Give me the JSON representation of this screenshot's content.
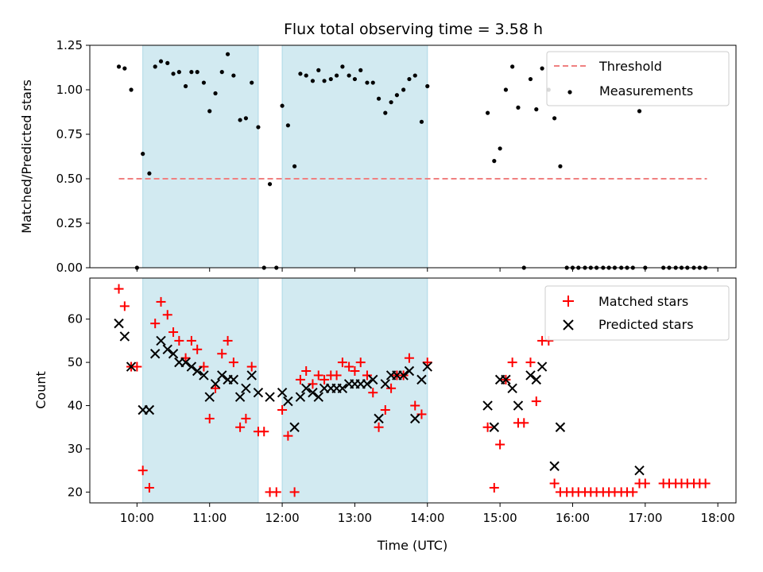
{
  "title": "Flux total observing time = 3.58 h",
  "colors": {
    "span": "#add8e6",
    "threshold": "#f08080",
    "measurement": "#000000",
    "matched": "#ff0000",
    "predicted": "#000000"
  },
  "chart_data": [
    {
      "type": "scatter",
      "ylabel": "Matched/Predicted stars",
      "xlim": [
        9.35,
        18.25
      ],
      "ylim": [
        0,
        1.25
      ],
      "y_ticks": [
        "0.00",
        "0.25",
        "0.50",
        "0.75",
        "1.00",
        "1.25"
      ],
      "y_tick_values": [
        0,
        0.25,
        0.5,
        0.75,
        1.0,
        1.25
      ],
      "legend": {
        "position": "top-right",
        "entries": [
          "Threshold",
          "Measurements"
        ]
      },
      "observing_spans": [
        [
          10.08,
          11.67
        ],
        [
          12.0,
          14.0
        ]
      ],
      "threshold": {
        "name": "Threshold",
        "value": 0.5,
        "x": [
          9.75,
          17.85
        ]
      },
      "series": [
        {
          "name": "Measurements",
          "points": [
            [
              9.75,
              1.13
            ],
            [
              9.83,
              1.12
            ],
            [
              9.92,
              1.0
            ],
            [
              10.0,
              0.0
            ],
            [
              10.08,
              0.64
            ],
            [
              10.17,
              0.53
            ],
            [
              10.25,
              1.13
            ],
            [
              10.33,
              1.16
            ],
            [
              10.42,
              1.15
            ],
            [
              10.5,
              1.09
            ],
            [
              10.58,
              1.1
            ],
            [
              10.67,
              1.02
            ],
            [
              10.75,
              1.1
            ],
            [
              10.83,
              1.1
            ],
            [
              10.92,
              1.04
            ],
            [
              11.0,
              0.88
            ],
            [
              11.08,
              0.98
            ],
            [
              11.17,
              1.1
            ],
            [
              11.25,
              1.2
            ],
            [
              11.33,
              1.08
            ],
            [
              11.42,
              0.83
            ],
            [
              11.5,
              0.84
            ],
            [
              11.58,
              1.04
            ],
            [
              11.67,
              0.79
            ],
            [
              11.75,
              0.0
            ],
            [
              11.83,
              0.47
            ],
            [
              11.92,
              0.0
            ],
            [
              12.0,
              0.91
            ],
            [
              12.08,
              0.8
            ],
            [
              12.17,
              0.57
            ],
            [
              12.25,
              1.09
            ],
            [
              12.33,
              1.08
            ],
            [
              12.42,
              1.05
            ],
            [
              12.5,
              1.11
            ],
            [
              12.58,
              1.05
            ],
            [
              12.67,
              1.06
            ],
            [
              12.75,
              1.08
            ],
            [
              12.83,
              1.13
            ],
            [
              12.92,
              1.08
            ],
            [
              13.0,
              1.06
            ],
            [
              13.08,
              1.11
            ],
            [
              13.17,
              1.04
            ],
            [
              13.25,
              1.04
            ],
            [
              13.33,
              0.95
            ],
            [
              13.42,
              0.87
            ],
            [
              13.5,
              0.93
            ],
            [
              13.58,
              0.97
            ],
            [
              13.67,
              1.0
            ],
            [
              13.75,
              1.06
            ],
            [
              13.83,
              1.08
            ],
            [
              13.92,
              0.82
            ],
            [
              14.0,
              1.02
            ],
            [
              14.83,
              0.87
            ],
            [
              14.92,
              0.6
            ],
            [
              15.0,
              0.67
            ],
            [
              15.08,
              1.0
            ],
            [
              15.17,
              1.13
            ],
            [
              15.25,
              0.9
            ],
            [
              15.33,
              0.0
            ],
            [
              15.42,
              1.06
            ],
            [
              15.5,
              0.89
            ],
            [
              15.58,
              1.12
            ],
            [
              15.67,
              1.0
            ],
            [
              15.75,
              0.84
            ],
            [
              15.83,
              0.57
            ],
            [
              15.92,
              0.0
            ],
            [
              16.0,
              0.0
            ],
            [
              16.08,
              0.0
            ],
            [
              16.17,
              0.0
            ],
            [
              16.25,
              0.0
            ],
            [
              16.33,
              0.0
            ],
            [
              16.42,
              0.0
            ],
            [
              16.5,
              0.0
            ],
            [
              16.58,
              0.0
            ],
            [
              16.67,
              0.0
            ],
            [
              16.75,
              0.0
            ],
            [
              16.83,
              0.0
            ],
            [
              16.92,
              0.88
            ],
            [
              17.0,
              0.0
            ],
            [
              17.25,
              0.0
            ],
            [
              17.33,
              0.0
            ],
            [
              17.42,
              0.0
            ],
            [
              17.5,
              0.0
            ],
            [
              17.58,
              0.0
            ],
            [
              17.67,
              0.0
            ],
            [
              17.75,
              0.0
            ],
            [
              17.83,
              0.0
            ]
          ]
        }
      ]
    },
    {
      "type": "scatter",
      "xlabel": "Time (UTC)",
      "ylabel": "Count",
      "xlim": [
        9.35,
        18.25
      ],
      "ylim": [
        17.5,
        69.5
      ],
      "x_ticks": [
        "10:00",
        "11:00",
        "12:00",
        "13:00",
        "14:00",
        "15:00",
        "16:00",
        "17:00",
        "18:00"
      ],
      "x_tick_values": [
        10,
        11,
        12,
        13,
        14,
        15,
        16,
        17,
        18
      ],
      "y_ticks": [
        "20",
        "30",
        "40",
        "50",
        "60"
      ],
      "y_tick_values": [
        20,
        30,
        40,
        50,
        60
      ],
      "legend": {
        "position": "top-right",
        "entries": [
          "Matched stars",
          "Predicted stars"
        ]
      },
      "observing_spans": [
        [
          10.08,
          11.67
        ],
        [
          12.0,
          14.0
        ]
      ],
      "series": [
        {
          "name": "Matched stars",
          "marker": "plus",
          "points": [
            [
              9.75,
              67
            ],
            [
              9.83,
              63
            ],
            [
              9.92,
              49
            ],
            [
              10.0,
              49
            ],
            [
              10.08,
              25
            ],
            [
              10.17,
              21
            ],
            [
              10.25,
              59
            ],
            [
              10.33,
              64
            ],
            [
              10.42,
              61
            ],
            [
              10.5,
              57
            ],
            [
              10.58,
              55
            ],
            [
              10.67,
              51
            ],
            [
              10.75,
              55
            ],
            [
              10.83,
              53
            ],
            [
              10.92,
              49
            ],
            [
              11.0,
              37
            ],
            [
              11.08,
              44
            ],
            [
              11.17,
              52
            ],
            [
              11.25,
              55
            ],
            [
              11.33,
              50
            ],
            [
              11.42,
              35
            ],
            [
              11.5,
              37
            ],
            [
              11.58,
              49
            ],
            [
              11.67,
              34
            ],
            [
              11.75,
              34
            ],
            [
              11.83,
              20
            ],
            [
              11.92,
              20
            ],
            [
              12.0,
              39
            ],
            [
              12.08,
              33
            ],
            [
              12.17,
              20
            ],
            [
              12.25,
              46
            ],
            [
              12.33,
              48
            ],
            [
              12.42,
              45
            ],
            [
              12.5,
              47
            ],
            [
              12.58,
              46
            ],
            [
              12.67,
              47
            ],
            [
              12.75,
              47
            ],
            [
              12.83,
              50
            ],
            [
              12.92,
              49
            ],
            [
              13.0,
              48
            ],
            [
              13.08,
              50
            ],
            [
              13.17,
              47
            ],
            [
              13.25,
              43
            ],
            [
              13.33,
              35
            ],
            [
              13.42,
              39
            ],
            [
              13.5,
              44
            ],
            [
              13.58,
              47
            ],
            [
              13.67,
              47
            ],
            [
              13.75,
              51
            ],
            [
              13.83,
              40
            ],
            [
              13.92,
              38
            ],
            [
              14.0,
              50
            ],
            [
              14.83,
              35
            ],
            [
              14.92,
              21
            ],
            [
              15.0,
              31
            ],
            [
              15.08,
              46
            ],
            [
              15.17,
              50
            ],
            [
              15.25,
              36
            ],
            [
              15.33,
              36
            ],
            [
              15.42,
              50
            ],
            [
              15.5,
              41
            ],
            [
              15.58,
              55
            ],
            [
              15.67,
              55
            ],
            [
              15.75,
              22
            ],
            [
              15.83,
              20
            ],
            [
              15.92,
              20
            ],
            [
              16.0,
              20
            ],
            [
              16.08,
              20
            ],
            [
              16.17,
              20
            ],
            [
              16.25,
              20
            ],
            [
              16.33,
              20
            ],
            [
              16.42,
              20
            ],
            [
              16.5,
              20
            ],
            [
              16.58,
              20
            ],
            [
              16.67,
              20
            ],
            [
              16.75,
              20
            ],
            [
              16.83,
              20
            ],
            [
              16.92,
              22
            ],
            [
              17.0,
              22
            ],
            [
              17.25,
              22
            ],
            [
              17.33,
              22
            ],
            [
              17.42,
              22
            ],
            [
              17.5,
              22
            ],
            [
              17.58,
              22
            ],
            [
              17.67,
              22
            ],
            [
              17.75,
              22
            ],
            [
              17.83,
              22
            ]
          ]
        },
        {
          "name": "Predicted stars",
          "marker": "x",
          "points": [
            [
              9.75,
              59
            ],
            [
              9.83,
              56
            ],
            [
              9.92,
              49
            ],
            [
              10.08,
              39
            ],
            [
              10.17,
              39
            ],
            [
              10.25,
              52
            ],
            [
              10.33,
              55
            ],
            [
              10.42,
              53
            ],
            [
              10.5,
              52
            ],
            [
              10.58,
              50
            ],
            [
              10.67,
              50
            ],
            [
              10.75,
              49
            ],
            [
              10.83,
              48
            ],
            [
              10.92,
              47
            ],
            [
              11.0,
              42
            ],
            [
              11.08,
              45
            ],
            [
              11.17,
              47
            ],
            [
              11.25,
              46
            ],
            [
              11.33,
              46
            ],
            [
              11.42,
              42
            ],
            [
              11.5,
              44
            ],
            [
              11.58,
              47
            ],
            [
              11.67,
              43
            ],
            [
              11.83,
              42
            ],
            [
              12.0,
              43
            ],
            [
              12.08,
              41
            ],
            [
              12.17,
              35
            ],
            [
              12.25,
              42
            ],
            [
              12.33,
              44
            ],
            [
              12.42,
              43
            ],
            [
              12.5,
              42
            ],
            [
              12.58,
              44
            ],
            [
              12.67,
              44
            ],
            [
              12.75,
              44
            ],
            [
              12.83,
              44
            ],
            [
              12.92,
              45
            ],
            [
              13.0,
              45
            ],
            [
              13.08,
              45
            ],
            [
              13.17,
              45
            ],
            [
              13.25,
              46
            ],
            [
              13.33,
              37
            ],
            [
              13.42,
              45
            ],
            [
              13.5,
              47
            ],
            [
              13.58,
              47
            ],
            [
              13.67,
              47
            ],
            [
              13.75,
              48
            ],
            [
              13.83,
              37
            ],
            [
              13.92,
              46
            ],
            [
              14.0,
              49
            ],
            [
              14.83,
              40
            ],
            [
              14.92,
              35
            ],
            [
              15.0,
              46
            ],
            [
              15.08,
              46
            ],
            [
              15.17,
              44
            ],
            [
              15.25,
              40
            ],
            [
              15.42,
              47
            ],
            [
              15.5,
              46
            ],
            [
              15.58,
              49
            ],
            [
              15.75,
              26
            ],
            [
              15.83,
              35
            ],
            [
              16.92,
              25
            ]
          ]
        }
      ]
    }
  ]
}
